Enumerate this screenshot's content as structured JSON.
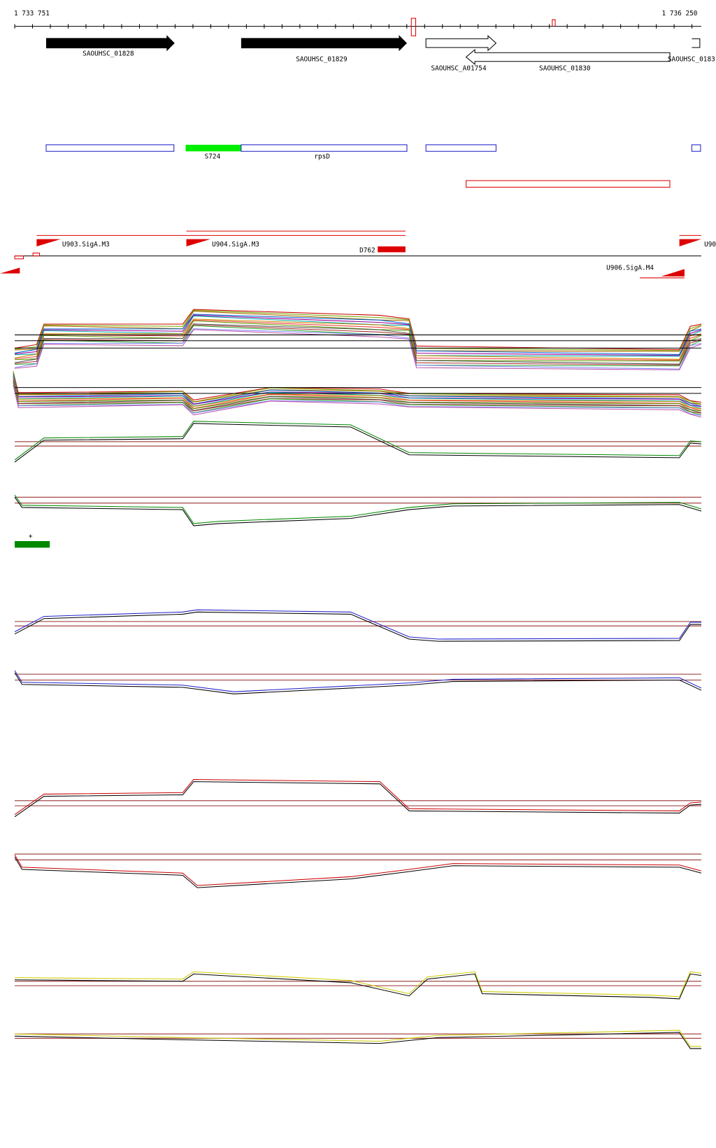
{
  "ruler": {
    "start": "1 733 751",
    "end": "1 736 250"
  },
  "genes": [
    "SAOUHSC_01828",
    "SAOUHSC_01829",
    "SAOUHSC_A01754",
    "SAOUHSC_01830",
    "SAOUHSC_0183"
  ],
  "features": [
    "S724",
    "rpsD"
  ],
  "promoters": [
    "U903.SigA.M3",
    "U904.SigA.M3",
    "D762",
    "U906.SigA.M4",
    "U90"
  ],
  "strand": "+"
}
